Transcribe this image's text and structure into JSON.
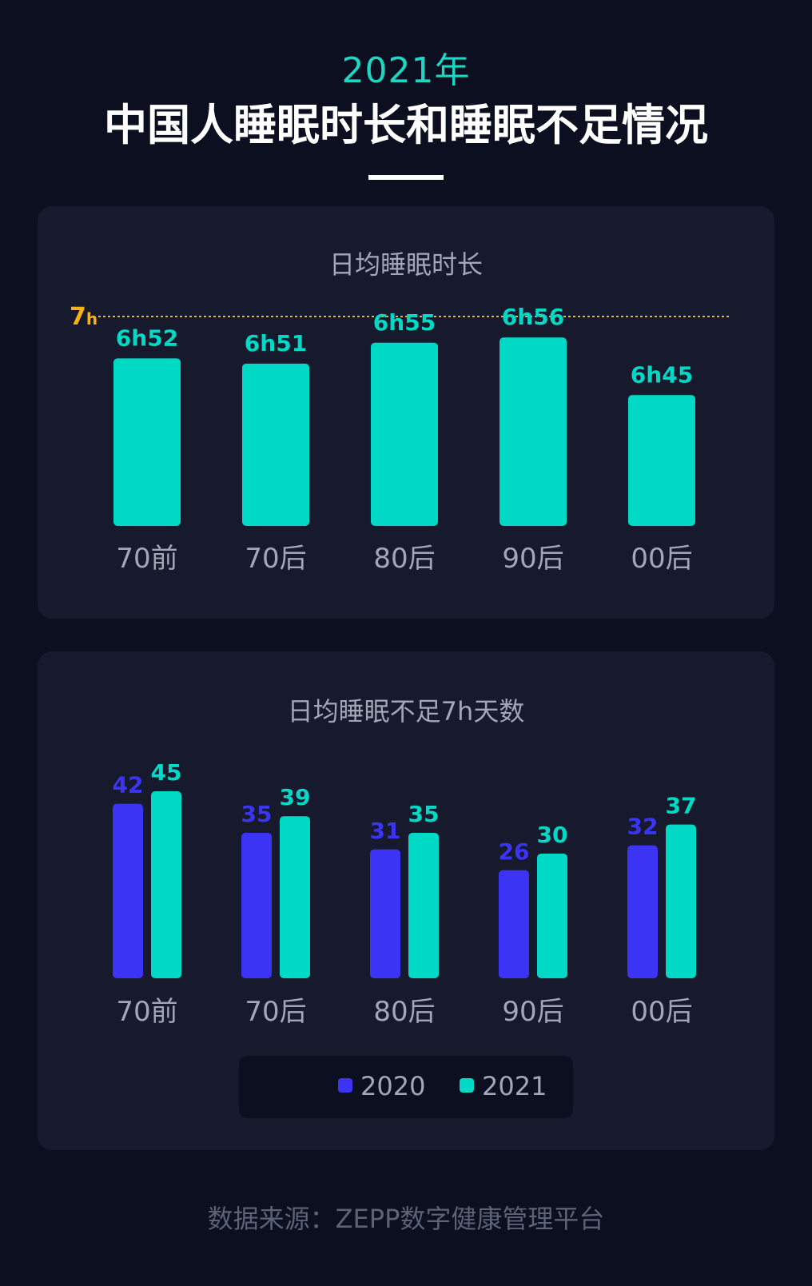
{
  "header": {
    "year": "2021年",
    "title": "中国人睡眠时长和睡眠不足情况"
  },
  "colors": {
    "background": "#0b0f1f",
    "panel": "#161a2c",
    "teal": "#00d9c5",
    "blue": "#3c34f4",
    "reference_line": "#f5b315",
    "axis_text": "#a2a6b6"
  },
  "chart_data": [
    {
      "type": "bar",
      "title": "日均睡眠时长",
      "categories": [
        "70前",
        "70后",
        "80后",
        "90后",
        "00后"
      ],
      "values_minutes": [
        412,
        411,
        415,
        416,
        405
      ],
      "value_labels": [
        "6h52",
        "6h51",
        "6h55",
        "6h56",
        "6h45"
      ],
      "reference_line": {
        "value_minutes": 420,
        "label_num": "7",
        "label_unit": "h"
      },
      "ylim_minutes": [
        380,
        420
      ]
    },
    {
      "type": "bar",
      "title": "日均睡眠不足7h天数",
      "categories": [
        "70前",
        "70后",
        "80后",
        "90后",
        "00后"
      ],
      "series": [
        {
          "name": "2020",
          "values": [
            42,
            35,
            31,
            26,
            32
          ]
        },
        {
          "name": "2021",
          "values": [
            45,
            39,
            35,
            30,
            37
          ]
        }
      ],
      "legend": "bottom-center"
    }
  ],
  "footer": {
    "source": "数据来源：ZEPP数字健康管理平台"
  }
}
